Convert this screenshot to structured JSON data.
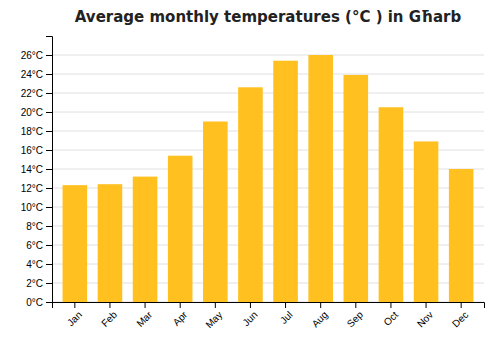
{
  "chart_data": {
    "type": "bar",
    "title": "Average monthly temperatures (°C ) in Għarb",
    "categories": [
      "Jan",
      "Feb",
      "Mar",
      "Apr",
      "May",
      "Jun",
      "Jul",
      "Aug",
      "Sep",
      "Oct",
      "Nov",
      "Dec"
    ],
    "values": [
      12.3,
      12.4,
      13.2,
      15.4,
      19.0,
      22.6,
      25.4,
      26.0,
      23.9,
      20.5,
      16.9,
      14.0
    ],
    "color": "#FFC020",
    "ylim": [
      0,
      28
    ],
    "yticks": [
      {
        "value": 0,
        "label": "0°C"
      },
      {
        "value": 2,
        "label": "2°C"
      },
      {
        "value": 4,
        "label": "4°C"
      },
      {
        "value": 6,
        "label": "6°C"
      },
      {
        "value": 8,
        "label": "8°C"
      },
      {
        "value": 10,
        "label": "10°C"
      },
      {
        "value": 12,
        "label": "12°C"
      },
      {
        "value": 14,
        "label": "14°C"
      },
      {
        "value": 16,
        "label": "16°C"
      },
      {
        "value": 18,
        "label": "18°C"
      },
      {
        "value": 20,
        "label": "20°C"
      },
      {
        "value": 22,
        "label": "22°C"
      },
      {
        "value": 24,
        "label": "24°C"
      },
      {
        "value": 26,
        "label": "26°C"
      }
    ],
    "grid": true
  }
}
